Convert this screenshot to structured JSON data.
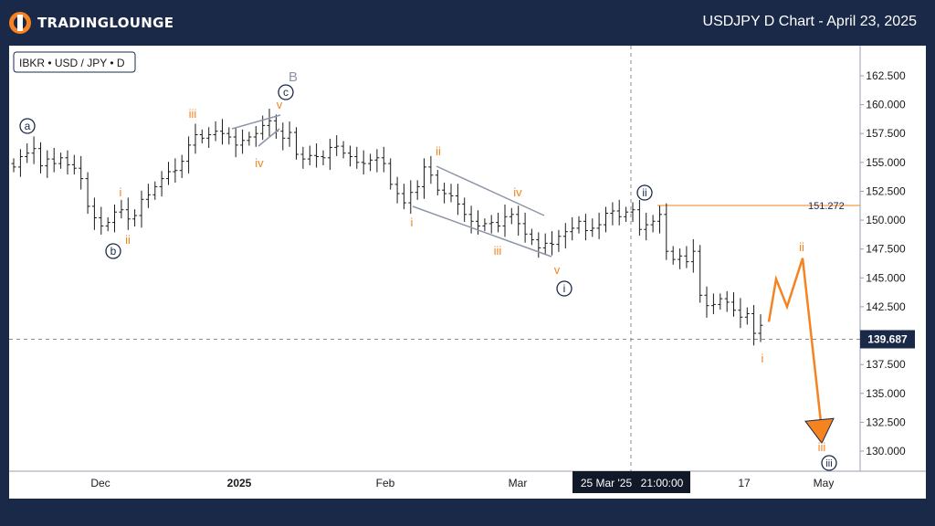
{
  "header": {
    "logo_text": "TRADINGLOUNGE",
    "title": "USDJPY D Chart - April 23, 2025"
  },
  "colors": {
    "background": "#1b2949",
    "orange": "#f5831f",
    "navy": "#1b2949",
    "grey": "#8c94a8",
    "candle": "#1a1a1a"
  },
  "chart_data": {
    "type": "line",
    "symbol_label": "IBKR • USD / JPY • D",
    "y_ticks": [
      "162.500",
      "160.000",
      "157.500",
      "155.000",
      "152.500",
      "150.000",
      "147.500",
      "145.000",
      "142.500",
      "139.687",
      "137.500",
      "135.000",
      "132.500",
      "130.000"
    ],
    "x_ticks": [
      "Dec",
      "2025",
      "Feb",
      "Mar",
      "17",
      "May"
    ],
    "ylim": [
      128,
      165
    ],
    "current_price": 139.687,
    "resistance_level": 151.272,
    "crosshair_label_date": "25 Mar '25",
    "crosshair_label_time": "21:00:00",
    "series": [
      {
        "name": "",
        "values": [
          154.6,
          155.5,
          155.8,
          156.2,
          154.7,
          155.3,
          154.9,
          155.4,
          154.8,
          154.5,
          153.6,
          151.2,
          150.2,
          149.5,
          149.8,
          150.7,
          150.9,
          150.1,
          150.4,
          151.8,
          152.2,
          152.9,
          153.6,
          154.2,
          154.3,
          155.1,
          156.5,
          157.4,
          157.1,
          157.4,
          157.7,
          157.5,
          157.2,
          156.5,
          156.9,
          157.2,
          157.5,
          158.2,
          158.6,
          157.7,
          157.1,
          157.6,
          155.7,
          155.3,
          155.6,
          155.5,
          155.4,
          156.3,
          156.4,
          155.8,
          155.5,
          155.0,
          154.9,
          155.2,
          155.4,
          154.9,
          153.1,
          152.3,
          151.5,
          152.4,
          152.9,
          154.6,
          153.9,
          152.6,
          152.3,
          152.1,
          151.4,
          150.5,
          149.9,
          149.5,
          149.7,
          149.8,
          149.5,
          150.3,
          150.5,
          149.7,
          148.8,
          148.3,
          147.6,
          148.0,
          147.9,
          148.6,
          149.0,
          149.3,
          149.9,
          149.1,
          149.3,
          149.6,
          150.6,
          150.8,
          150.3,
          150.7,
          150.9,
          149.2,
          149.6,
          149.9,
          150.5,
          147.3,
          146.6,
          146.9,
          146.4,
          147.3,
          143.5,
          142.6,
          142.7,
          143.2,
          142.9,
          142.2,
          141.6,
          141.9,
          140.2,
          140.9
        ]
      }
    ],
    "projection": [
      141.2,
      144.9,
      142.5,
      146.7,
      131.8
    ],
    "waves": {
      "a": "a",
      "b": "b",
      "c": "c",
      "B": "B",
      "i": "i",
      "ii": "ii",
      "iii_circle": "iii",
      "orange": {
        "i1": "i",
        "ii1": "ii",
        "iii1": "iii",
        "iv1": "iv",
        "v1": "v",
        "i2": "i",
        "ii2": "ii",
        "iii2": "iii",
        "iv2": "iv",
        "v2": "v",
        "i3": "i",
        "ii3": "ii",
        "iii3": "iii"
      }
    }
  }
}
